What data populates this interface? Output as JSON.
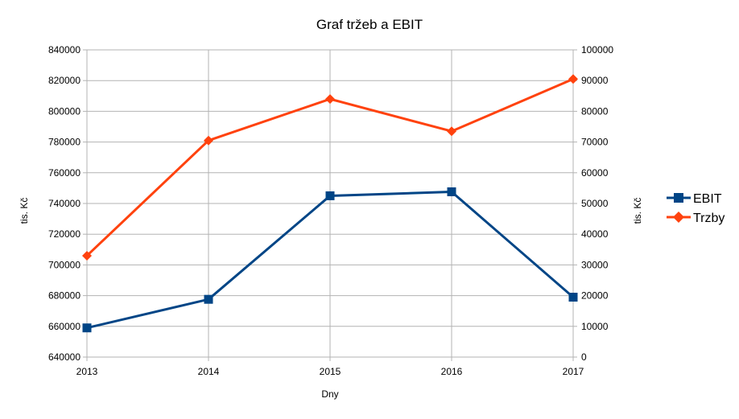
{
  "chart_data": {
    "type": "line",
    "title": "Graf tržeb a EBIT",
    "xlabel": "Dny",
    "ylabel_left": "tis. Kč",
    "ylabel_right": "tis. Kč",
    "x": [
      "2013",
      "2014",
      "2015",
      "2016",
      "2017"
    ],
    "y_left": {
      "min": 640000,
      "max": 840000,
      "ticks": [
        "640000",
        "660000",
        "680000",
        "700000",
        "720000",
        "740000",
        "760000",
        "780000",
        "800000",
        "820000",
        "840000"
      ]
    },
    "y_right": {
      "min": 0,
      "max": 100000,
      "ticks": [
        "0",
        "10000",
        "20000",
        "30000",
        "40000",
        "50000",
        "60000",
        "70000",
        "80000",
        "90000",
        "100000"
      ]
    },
    "grid": true,
    "legend_position": "right",
    "series": [
      {
        "name": "EBIT",
        "axis": "right",
        "color": "#004586",
        "marker": "square",
        "values": [
          9500,
          18800,
          52500,
          53800,
          19500
        ]
      },
      {
        "name": "Trzby",
        "axis": "left",
        "color": "#ff420e",
        "marker": "diamond",
        "values": [
          706000,
          781000,
          808000,
          787000,
          821000
        ]
      }
    ]
  }
}
